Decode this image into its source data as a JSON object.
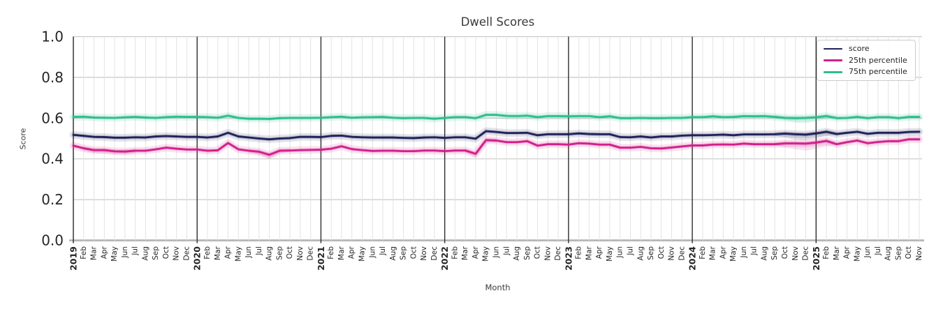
{
  "chart_data": {
    "type": "line",
    "title": "Dwell Scores",
    "xlabel": "Month",
    "ylabel": "Score",
    "ylim": [
      0.0,
      1.0
    ],
    "yticks": [
      0.0,
      0.2,
      0.4,
      0.6,
      0.8,
      1.0
    ],
    "ytick_labels": [
      "0.0",
      "0.2",
      "0.4",
      "0.6",
      "0.8",
      "1.0"
    ],
    "grid": true,
    "legend_position": "upper right",
    "x_ticklabels": [
      "2019",
      "Feb",
      "Mar",
      "Apr",
      "May",
      "Jun",
      "Jul",
      "Aug",
      "Sep",
      "Oct",
      "Nov",
      "Dec",
      "2020",
      "Feb",
      "Mar",
      "Apr",
      "May",
      "Jun",
      "Jul",
      "Aug",
      "Sep",
      "Oct",
      "Nov",
      "Dec",
      "2021",
      "Feb",
      "Mar",
      "Apr",
      "May",
      "Jun",
      "Jul",
      "Aug",
      "Sep",
      "Oct",
      "Nov",
      "Dec",
      "2022",
      "Feb",
      "Mar",
      "Apr",
      "May",
      "Jun",
      "Jul",
      "Aug",
      "Sep",
      "Oct",
      "Nov",
      "Dec",
      "2023",
      "Feb",
      "Mar",
      "Apr",
      "May",
      "Jun",
      "Jul",
      "Aug",
      "Sep",
      "Oct",
      "Nov",
      "Dec",
      "2024",
      "Feb",
      "Mar",
      "Apr",
      "May",
      "Jun",
      "Jul",
      "Aug",
      "Sep",
      "Oct",
      "Nov",
      "Dec",
      "2025",
      "Feb",
      "Mar",
      "Apr",
      "May",
      "Jun",
      "Jul",
      "Aug",
      "Sep",
      "Oct",
      "Nov"
    ],
    "year_tick_indices": [
      12,
      24,
      36,
      48,
      60,
      72
    ],
    "series": [
      {
        "name": "score",
        "color": "#1e2158",
        "values": [
          0.518,
          0.513,
          0.508,
          0.507,
          0.504,
          0.504,
          0.506,
          0.505,
          0.51,
          0.512,
          0.51,
          0.508,
          0.508,
          0.505,
          0.51,
          0.528,
          0.51,
          0.505,
          0.5,
          0.496,
          0.5,
          0.502,
          0.508,
          0.508,
          0.507,
          0.513,
          0.514,
          0.508,
          0.506,
          0.505,
          0.505,
          0.505,
          0.503,
          0.502,
          0.505,
          0.506,
          0.503,
          0.506,
          0.506,
          0.499,
          0.536,
          0.532,
          0.527,
          0.527,
          0.528,
          0.516,
          0.521,
          0.521,
          0.521,
          0.525,
          0.522,
          0.521,
          0.521,
          0.507,
          0.506,
          0.51,
          0.505,
          0.51,
          0.51,
          0.514,
          0.516,
          0.516,
          0.517,
          0.519,
          0.516,
          0.52,
          0.52,
          0.52,
          0.521,
          0.524,
          0.521,
          0.519,
          0.525,
          0.533,
          0.522,
          0.528,
          0.533,
          0.523,
          0.528,
          0.528,
          0.528,
          0.532,
          0.533
        ],
        "wide_band": [
          {
            "start": 68,
            "lo": [
              0.515,
              0.505,
              0.494,
              0.49,
              0.5,
              0.513,
              0.518
            ]
          }
        ]
      },
      {
        "name": "25th percentile",
        "color": "#d21f8a",
        "values": [
          0.465,
          0.452,
          0.443,
          0.443,
          0.437,
          0.436,
          0.44,
          0.44,
          0.447,
          0.455,
          0.45,
          0.446,
          0.446,
          0.44,
          0.442,
          0.478,
          0.447,
          0.44,
          0.435,
          0.42,
          0.44,
          0.441,
          0.443,
          0.444,
          0.445,
          0.45,
          0.462,
          0.448,
          0.443,
          0.439,
          0.44,
          0.44,
          0.438,
          0.438,
          0.441,
          0.441,
          0.438,
          0.441,
          0.441,
          0.425,
          0.492,
          0.49,
          0.482,
          0.482,
          0.487,
          0.465,
          0.472,
          0.472,
          0.47,
          0.477,
          0.475,
          0.47,
          0.47,
          0.455,
          0.455,
          0.459,
          0.452,
          0.451,
          0.456,
          0.461,
          0.466,
          0.466,
          0.47,
          0.471,
          0.47,
          0.475,
          0.472,
          0.472,
          0.472,
          0.476,
          0.476,
          0.475,
          0.48,
          0.488,
          0.472,
          0.482,
          0.49,
          0.477,
          0.483,
          0.487,
          0.487,
          0.496,
          0.496
        ],
        "wide_band": [
          {
            "start": 1,
            "lo": [
              0.44,
              0.428,
              0.427,
              0.423,
              0.422,
              0.428
            ]
          },
          {
            "start": 17,
            "lo": [
              0.43,
              0.42,
              0.4,
              0.428,
              0.435
            ]
          },
          {
            "start": 38,
            "lo": [
              0.432,
              0.405,
              0.48,
              0.482
            ]
          },
          {
            "start": 68,
            "lo": [
              0.468,
              0.455,
              0.447,
              0.44,
              0.45,
              0.462,
              0.468
            ]
          }
        ]
      },
      {
        "name": "75th percentile",
        "color": "#2dbd8e",
        "values": [
          0.606,
          0.607,
          0.603,
          0.602,
          0.601,
          0.604,
          0.606,
          0.603,
          0.601,
          0.605,
          0.607,
          0.606,
          0.606,
          0.605,
          0.602,
          0.612,
          0.601,
          0.597,
          0.597,
          0.596,
          0.6,
          0.601,
          0.601,
          0.601,
          0.602,
          0.605,
          0.607,
          0.602,
          0.604,
          0.605,
          0.606,
          0.602,
          0.6,
          0.601,
          0.601,
          0.597,
          0.601,
          0.605,
          0.605,
          0.6,
          0.616,
          0.616,
          0.611,
          0.61,
          0.612,
          0.605,
          0.61,
          0.61,
          0.609,
          0.61,
          0.61,
          0.605,
          0.609,
          0.6,
          0.6,
          0.601,
          0.6,
          0.6,
          0.601,
          0.601,
          0.605,
          0.605,
          0.609,
          0.605,
          0.606,
          0.61,
          0.609,
          0.61,
          0.606,
          0.601,
          0.6,
          0.601,
          0.604,
          0.61,
          0.6,
          0.601,
          0.606,
          0.6,
          0.605,
          0.605,
          0.6,
          0.606,
          0.606
        ],
        "wide_band": [
          {
            "start": 68,
            "lo": [
              0.598,
              0.59,
              0.578,
              0.575,
              0.585,
              0.598,
              0.6
            ]
          }
        ]
      }
    ]
  },
  "colors": {
    "background": "#ffffff",
    "grid_minor": "#e3e3e3",
    "grid_major": "#c9c9c9",
    "axis_bottom": "#b5b5b5",
    "year_line": "#2e2e2e",
    "spine": "#262626",
    "tick_text": "#262626",
    "label_text": "#3a3a3a",
    "legend_border": "#cccccc"
  }
}
